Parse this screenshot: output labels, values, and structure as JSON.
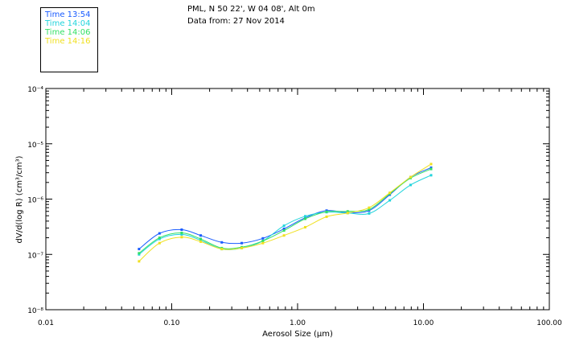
{
  "header": {
    "location_line": "PML, N 50 22', W 04 08', Alt 0m",
    "date_line": "Data from: 27 Nov 2014"
  },
  "legend": [
    {
      "label": "Time 13:54",
      "color": "#1a5cff"
    },
    {
      "label": "Time 14:04",
      "color": "#22d4dc"
    },
    {
      "label": "Time 14:06",
      "color": "#33e066"
    },
    {
      "label": "Time 14:16",
      "color": "#f0e020"
    }
  ],
  "chart_data": {
    "type": "line",
    "xlabel": "Aerosol Size (μm)",
    "ylabel": "dV/d(log R) (cm³/cm³)",
    "xscale": "log",
    "yscale": "log",
    "xlim": [
      0.01,
      100
    ],
    "ylim": [
      1e-08,
      0.0001
    ],
    "xticks": [
      "0.01",
      "0.10",
      "1.00",
      "10.00",
      "100.00"
    ],
    "yticks": [
      "10⁻⁸",
      "10⁻⁷",
      "10⁻⁶",
      "10⁻⁵",
      "10⁻⁴"
    ],
    "x": [
      0.055,
      0.08,
      0.12,
      0.17,
      0.25,
      0.36,
      0.53,
      0.78,
      1.15,
      1.7,
      2.5,
      3.7,
      5.4,
      7.9,
      11.5
    ],
    "series": [
      {
        "name": "Time 13:54",
        "color": "#1a5cff",
        "values": [
          1.25e-07,
          2.4e-07,
          2.8e-07,
          2.2e-07,
          1.65e-07,
          1.6e-07,
          1.95e-07,
          2.9e-07,
          4.6e-07,
          6.2e-07,
          5.7e-07,
          6.2e-07,
          1.2e-06,
          2.5e-06,
          3.7e-06
        ]
      },
      {
        "name": "Time 14:04",
        "color": "#22d4dc",
        "values": [
          1e-07,
          1.9e-07,
          2.3e-07,
          1.8e-07,
          1.25e-07,
          1.3e-07,
          1.75e-07,
          3.3e-07,
          4.9e-07,
          5.8e-07,
          5.6e-07,
          5.5e-07,
          9.5e-07,
          1.8e-06,
          2.7e-06
        ]
      },
      {
        "name": "Time 14:06",
        "color": "#33e066",
        "values": [
          1.05e-07,
          2e-07,
          2.45e-07,
          1.9e-07,
          1.3e-07,
          1.35e-07,
          1.75e-07,
          2.7e-07,
          4.4e-07,
          5.9e-07,
          6e-07,
          6.5e-07,
          1.25e-06,
          2.4e-06,
          3.5e-06
        ]
      },
      {
        "name": "Time 14:16",
        "color": "#f0e020",
        "values": [
          7.5e-08,
          1.6e-07,
          2.05e-07,
          1.7e-07,
          1.25e-07,
          1.3e-07,
          1.6e-07,
          2.2e-07,
          3.1e-07,
          4.8e-07,
          5.6e-07,
          7e-07,
          1.3e-06,
          2.5e-06,
          4.3e-06
        ]
      }
    ]
  }
}
